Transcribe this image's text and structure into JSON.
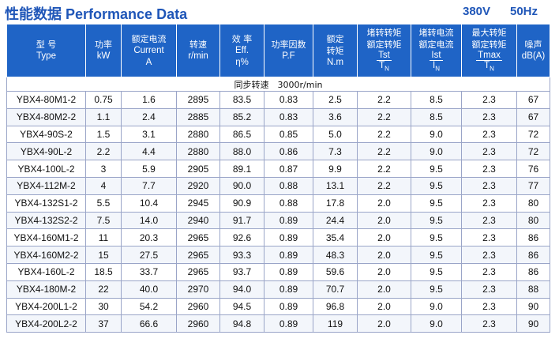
{
  "header": {
    "title_zh": "性能数据",
    "title_en": "Performance Data",
    "voltage": "380V",
    "frequency": "50Hz"
  },
  "columns": [
    {
      "zh": "型  号",
      "en": "Type"
    },
    {
      "zh": "功率",
      "en": "kW"
    },
    {
      "zh": "额定电流",
      "en": "Current",
      "en2": "A"
    },
    {
      "zh": "转速",
      "en": "r/min"
    },
    {
      "zh": "效  率",
      "en": "Eff.",
      "en2": "η%"
    },
    {
      "zh": "功率因数",
      "en": "P.F"
    },
    {
      "zh": "额定",
      "zh2": "转矩",
      "en": "N.m"
    },
    {
      "zh": "堵转转矩",
      "zh2": "额定转矩",
      "num": "Tst",
      "den": "T",
      "den_sub": "N"
    },
    {
      "zh": "堵转电流",
      "zh2": "额定电流",
      "num": "Ist",
      "den": "I",
      "den_sub": "N"
    },
    {
      "zh": "最大转矩",
      "zh2": "额定转矩",
      "num": "Tmax",
      "den": "T",
      "den_sub": "N"
    },
    {
      "zh": "噪声",
      "en": "dB(A)"
    }
  ],
  "group_label": "同步转速　3000r/min",
  "rows": [
    [
      "YBX4-80M1-2",
      "0.75",
      "1.6",
      "2895",
      "83.5",
      "0.83",
      "2.5",
      "2.2",
      "8.5",
      "2.3",
      "67"
    ],
    [
      "YBX4-80M2-2",
      "1.1",
      "2.4",
      "2885",
      "85.2",
      "0.83",
      "3.6",
      "2.2",
      "8.5",
      "2.3",
      "67"
    ],
    [
      "YBX4-90S-2",
      "1.5",
      "3.1",
      "2880",
      "86.5",
      "0.85",
      "5.0",
      "2.2",
      "9.0",
      "2.3",
      "72"
    ],
    [
      "YBX4-90L-2",
      "2.2",
      "4.4",
      "2880",
      "88.0",
      "0.86",
      "7.3",
      "2.2",
      "9.0",
      "2.3",
      "72"
    ],
    [
      "YBX4-100L-2",
      "3",
      "5.9",
      "2905",
      "89.1",
      "0.87",
      "9.9",
      "2.2",
      "9.5",
      "2.3",
      "76"
    ],
    [
      "YBX4-112M-2",
      "4",
      "7.7",
      "2920",
      "90.0",
      "0.88",
      "13.1",
      "2.2",
      "9.5",
      "2.3",
      "77"
    ],
    [
      "YBX4-132S1-2",
      "5.5",
      "10.4",
      "2945",
      "90.9",
      "0.88",
      "17.8",
      "2.0",
      "9.5",
      "2.3",
      "80"
    ],
    [
      "YBX4-132S2-2",
      "7.5",
      "14.0",
      "2940",
      "91.7",
      "0.89",
      "24.4",
      "2.0",
      "9.5",
      "2.3",
      "80"
    ],
    [
      "YBX4-160M1-2",
      "11",
      "20.3",
      "2965",
      "92.6",
      "0.89",
      "35.4",
      "2.0",
      "9.5",
      "2.3",
      "86"
    ],
    [
      "YBX4-160M2-2",
      "15",
      "27.5",
      "2965",
      "93.3",
      "0.89",
      "48.3",
      "2.0",
      "9.5",
      "2.3",
      "86"
    ],
    [
      "YBX4-160L-2",
      "18.5",
      "33.7",
      "2965",
      "93.7",
      "0.89",
      "59.6",
      "2.0",
      "9.5",
      "2.3",
      "86"
    ],
    [
      "YBX4-180M-2",
      "22",
      "40.0",
      "2970",
      "94.0",
      "0.89",
      "70.7",
      "2.0",
      "9.5",
      "2.3",
      "88"
    ],
    [
      "YBX4-200L1-2",
      "30",
      "54.2",
      "2960",
      "94.5",
      "0.89",
      "96.8",
      "2.0",
      "9.0",
      "2.3",
      "90"
    ],
    [
      "YBX4-200L2-2",
      "37",
      "66.6",
      "2960",
      "94.8",
      "0.89",
      "119",
      "2.0",
      "9.0",
      "2.3",
      "90"
    ]
  ],
  "colors": {
    "header_bg": "#1f64c6",
    "title_color": "#1f56b8",
    "border": "#9aa5c8"
  }
}
